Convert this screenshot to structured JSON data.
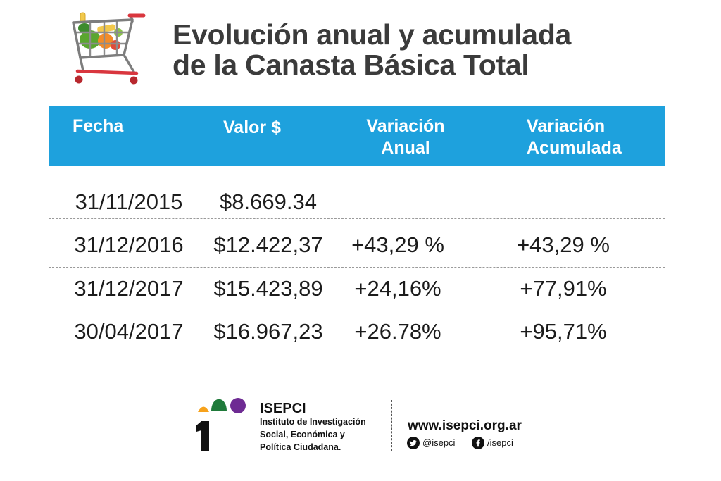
{
  "chart_data": {
    "type": "table",
    "title": [
      "Evolución anual y acumulada",
      "de la Canasta Básica Total"
    ],
    "columns": [
      [
        "Fecha"
      ],
      [
        "Valor $"
      ],
      [
        "Variación",
        "Anual"
      ],
      [
        "Variación",
        "Acumulada"
      ]
    ],
    "rows": [
      [
        "31/11/2015",
        "$8.669.34",
        null,
        null
      ],
      [
        "31/12/2016",
        "$12.422,37",
        "+43,29 %",
        "+43,29 %"
      ],
      [
        "31/12/2017",
        "$15.423,89",
        "+24,16%",
        "+77,91%"
      ],
      [
        "30/04/2017",
        "$16.967,23",
        "+26.78%",
        "+95,71%"
      ]
    ]
  },
  "footer": {
    "org_name": "ISEPCI",
    "org_description": [
      "Instituto de Investigación",
      "Social, Económica y",
      "Política Ciudadana."
    ],
    "website": "www.isepci.org.ar",
    "twitter_handle": "@isepci",
    "facebook_handle": "/isepci"
  },
  "icons": {
    "cart": "shopping-cart-icon",
    "logo": "isepci-logo-icon",
    "twitter": "twitter-icon",
    "facebook": "facebook-icon"
  },
  "colors": {
    "header_bar": "#1ea1dd",
    "title_text": "#3b3b3b",
    "body_text": "#1c1c1c",
    "logo_orange": "#f7a21b",
    "logo_green": "#1f7a3a",
    "logo_purple": "#6e2b93"
  }
}
